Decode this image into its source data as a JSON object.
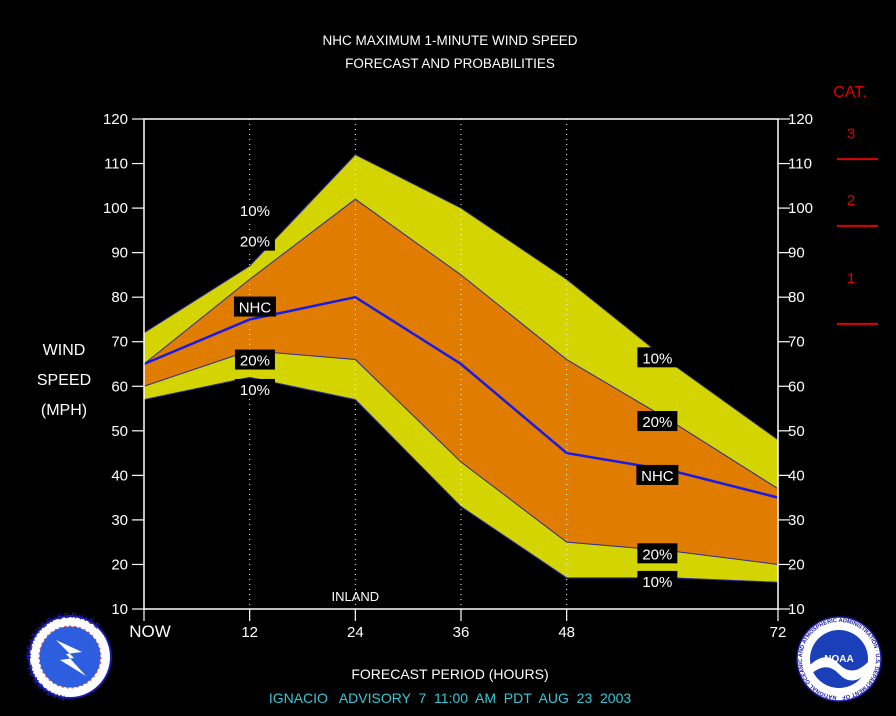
{
  "colors": {
    "background": "#000000",
    "outer_band": "#d4d400",
    "inner_band": "#e07c00",
    "nhc_line": "#1a1ae6",
    "category_red": "#e00000",
    "text": "#ffffff",
    "footer_cyan": "#35c8d6"
  },
  "chart_data": {
    "type": "area",
    "title_line1": "NHC MAXIMUM 1-MINUTE WIND SPEED",
    "title_line2": "FORECAST AND PROBABILITIES",
    "ylabel_lines": [
      "WIND",
      "SPEED",
      "(MPH)"
    ],
    "xlabel": "FORECAST PERIOD (HOURS)",
    "x_ticks": [
      {
        "value": 0,
        "label": "NOW"
      },
      {
        "value": 12,
        "label": "12"
      },
      {
        "value": 24,
        "label": "24"
      },
      {
        "value": 36,
        "label": "36"
      },
      {
        "value": 48,
        "label": "48"
      },
      {
        "value": 72,
        "label": "72"
      }
    ],
    "xlim": [
      0,
      72
    ],
    "ylim": [
      10,
      120
    ],
    "y_ticks": [
      10,
      20,
      30,
      40,
      50,
      60,
      70,
      80,
      90,
      100,
      110,
      120
    ],
    "x": [
      0,
      12,
      24,
      36,
      48,
      60,
      72
    ],
    "series": [
      {
        "name": "10%",
        "role": "upper",
        "values": [
          72,
          87,
          112,
          100,
          84,
          65,
          48
        ]
      },
      {
        "name": "20%",
        "role": "upper",
        "values": [
          65,
          84,
          102,
          85,
          66,
          52,
          37
        ]
      },
      {
        "name": "NHC",
        "role": "forecast",
        "values": [
          65,
          75,
          80,
          65,
          45,
          41,
          35
        ]
      },
      {
        "name": "20%",
        "role": "lower",
        "values": [
          60,
          68,
          66,
          43,
          25,
          23,
          20
        ]
      },
      {
        "name": "10%",
        "role": "lower",
        "values": [
          57,
          62,
          57,
          33,
          17,
          17,
          16
        ]
      }
    ],
    "series_labels": [
      {
        "text": "10%",
        "x": 12.6,
        "y": 99.6
      },
      {
        "text": "20%",
        "x": 12.6,
        "y": 92.7
      },
      {
        "text": "NHC",
        "x": 12.6,
        "y": 77.9
      },
      {
        "text": "20%",
        "x": 12.6,
        "y": 66.0
      },
      {
        "text": "10%",
        "x": 12.6,
        "y": 59.4
      },
      {
        "text": "10%",
        "x": 58.3,
        "y": 66.5
      },
      {
        "text": "20%",
        "x": 58.3,
        "y": 52.2
      },
      {
        "text": "NHC",
        "x": 58.3,
        "y": 40.1
      },
      {
        "text": "20%",
        "x": 58.3,
        "y": 22.5
      },
      {
        "text": "10%",
        "x": 58.3,
        "y": 16.3
      }
    ],
    "annotation": {
      "text": "INLAND",
      "x": 24
    },
    "grid_x": [
      12,
      24,
      36,
      48
    ],
    "category_scale": {
      "title": "CAT.",
      "categories": [
        {
          "label": "3",
          "y": 117
        },
        {
          "label": "2",
          "y": 102
        },
        {
          "label": "1",
          "y": 84.5
        }
      ],
      "boundaries": [
        111,
        96,
        74
      ]
    }
  },
  "footer": "IGNACIO   ADVISORY  7  11:00  AM  PDT  AUG  23  2003",
  "logos": {
    "left": "nws-logo",
    "left_text": "NATIONAL WEATHER SERVICE",
    "right": "noaa-logo",
    "right_badge": "NOAA",
    "right_text": "NATIONAL OCEANIC AND ATMOSPHERIC ADMINISTRATION · U.S. DEPARTMENT OF COMMERCE"
  }
}
